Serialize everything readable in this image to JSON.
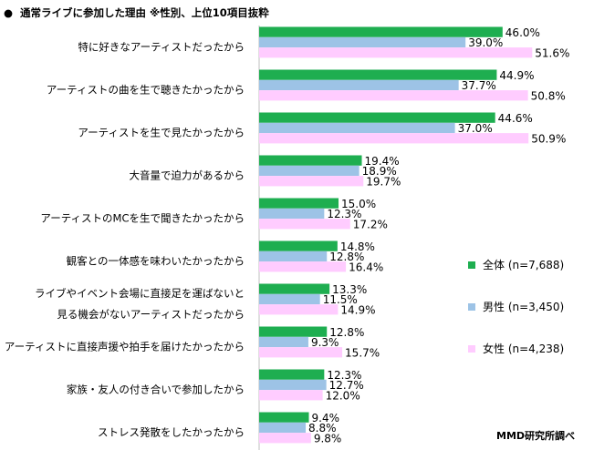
{
  "title": {
    "bullet": "●",
    "text": "通常ライブに参加した理由 ※性別、上位10項目抜粋"
  },
  "chart_data": {
    "type": "bar",
    "orientation": "horizontal",
    "title": "通常ライブに参加した理由 ※性別、上位10項目抜粋",
    "categories": [
      [
        "特に好きなアーティストだったから"
      ],
      [
        "アーティストの曲を生で聴きたかったから"
      ],
      [
        "アーティストを生で見たかったから"
      ],
      [
        "大音量で迫力があるから"
      ],
      [
        "アーティストのMCを生で聞きたかったから"
      ],
      [
        "観客との一体感を味わいたかったから"
      ],
      [
        "ライブやイベント会場に直接足を運ばないと",
        "見る機会がないアーティストだったから"
      ],
      [
        "アーティストに直接声援や拍手を届けたかったから"
      ],
      [
        "家族・友人の付き合いで参加したから"
      ],
      [
        "ストレス発散をしたかったから"
      ]
    ],
    "series": [
      {
        "name": "全体 (n=7,688)",
        "color": "#1eae50",
        "values": [
          46.0,
          44.9,
          44.6,
          19.4,
          15.0,
          14.8,
          13.3,
          12.8,
          12.3,
          9.4
        ]
      },
      {
        "name": "男性 (n=3,450)",
        "color": "#9dc3e6",
        "values": [
          39.0,
          37.7,
          37.0,
          18.9,
          12.3,
          12.8,
          11.5,
          9.3,
          12.7,
          8.8
        ]
      },
      {
        "name": "女性 (n=4,238)",
        "color": "#ffccff",
        "values": [
          51.6,
          50.8,
          50.9,
          19.7,
          17.2,
          16.4,
          14.9,
          15.7,
          12.0,
          9.8
        ]
      }
    ],
    "value_suffix": "%",
    "xlim": [
      0,
      60
    ],
    "grid": false,
    "legend_position": "right"
  },
  "source": "MMD研究所調べ"
}
